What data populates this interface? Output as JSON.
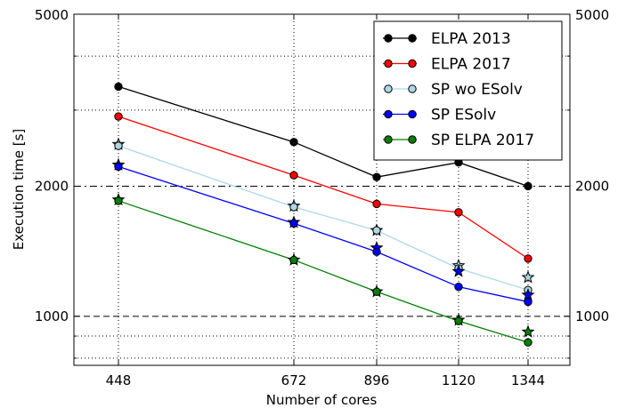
{
  "chart_data": {
    "type": "line",
    "xlabel": "Number of cores",
    "ylabel": "Execution time [s]",
    "y_scale": "log",
    "ylim": [
      770,
      5000
    ],
    "x": [
      448,
      672,
      896,
      1120,
      1344
    ],
    "x_tick_labels": [
      "448",
      "672",
      "896",
      "1120",
      "1344"
    ],
    "y_tick_labels": [
      "1000",
      "2000",
      "5000"
    ],
    "y_ticks": [
      1000,
      2000,
      5000
    ],
    "legend_position": "top-right",
    "grid": "dotted",
    "reference_lines": [
      {
        "y": 2000,
        "style": "dash-dot"
      },
      {
        "y": 1000,
        "style": "dashed"
      }
    ],
    "series": [
      {
        "name": "ELPA 2013",
        "color": "#000000",
        "marker": "circle",
        "values": [
          3400,
          2530,
          2100,
          2270,
          2000
        ]
      },
      {
        "name": "ELPA 2017",
        "color": "#ff0000",
        "marker": "circle",
        "values": [
          2900,
          2120,
          1820,
          1740,
          1360
        ]
      },
      {
        "name": "SP wo ESolv",
        "color": "#add8e6",
        "marker": "circle",
        "values": [
          2480,
          1790,
          1580,
          1290,
          1150
        ],
        "star_values": [
          2500,
          1800,
          1580,
          1310,
          1230
        ]
      },
      {
        "name": "SP ESolv",
        "color": "#0000ff",
        "marker": "circle",
        "values": [
          2220,
          1640,
          1410,
          1170,
          1080
        ],
        "star_values": [
          2240,
          1650,
          1440,
          1270,
          1120
        ]
      },
      {
        "name": "SP ELPA 2017",
        "color": "#008000",
        "marker": "circle",
        "values": [
          1850,
          1350,
          1140,
          975,
          870
        ],
        "star_values": [
          1860,
          1350,
          1140,
          980,
          920
        ]
      }
    ]
  }
}
